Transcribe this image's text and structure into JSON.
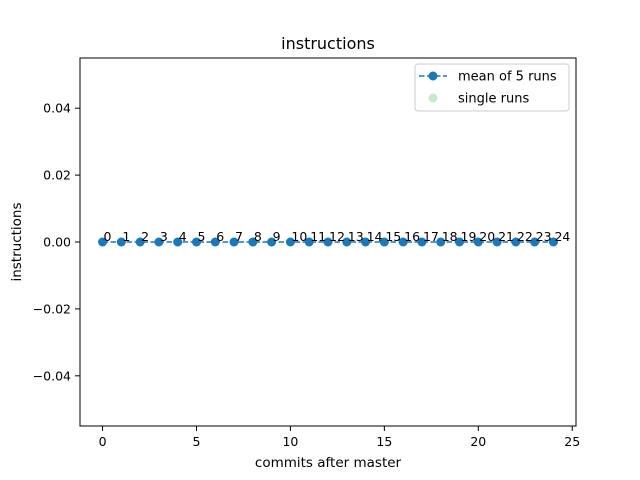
{
  "chart_data": {
    "type": "line",
    "title": "instructions",
    "xlabel": "commits after master",
    "ylabel": "instructions",
    "xlim": [
      -1.2,
      25.2
    ],
    "ylim": [
      -0.055,
      0.055
    ],
    "xticks": [
      0,
      5,
      10,
      15,
      20,
      25
    ],
    "yticks": [
      -0.04,
      -0.02,
      0.0,
      0.02,
      0.04
    ],
    "xtick_labels": [
      "0",
      "5",
      "10",
      "15",
      "20",
      "25"
    ],
    "ytick_labels": [
      "−0.04",
      "−0.02",
      "0.00",
      "0.02",
      "0.04"
    ],
    "grid": false,
    "legend_position": "top-right",
    "series": [
      {
        "name": "mean of 5 runs",
        "style": "dashed-line-with-circle-markers",
        "color": "#1f77b4",
        "x": [
          0,
          1,
          2,
          3,
          4,
          5,
          6,
          7,
          8,
          9,
          10,
          11,
          12,
          13,
          14,
          15,
          16,
          17,
          18,
          19,
          20,
          21,
          22,
          23,
          24
        ],
        "y": [
          0,
          0,
          0,
          0,
          0,
          0,
          0,
          0,
          0,
          0,
          0,
          0,
          0,
          0,
          0,
          0,
          0,
          0,
          0,
          0,
          0,
          0,
          0,
          0,
          0
        ]
      },
      {
        "name": "single runs",
        "style": "scatter",
        "color": "#2ca02c",
        "x": [
          0,
          1,
          2,
          3,
          4,
          5,
          6,
          7,
          8,
          9,
          10,
          11,
          12,
          13,
          14,
          15,
          16,
          17,
          18,
          19,
          20,
          21,
          22,
          23,
          24
        ],
        "y": [
          0,
          0,
          0,
          0,
          0,
          0,
          0,
          0,
          0,
          0,
          0,
          0,
          0,
          0,
          0,
          0,
          0,
          0,
          0,
          0,
          0,
          0,
          0,
          0,
          0
        ]
      }
    ],
    "point_labels": [
      "0",
      "1",
      "2",
      "3",
      "4",
      "5",
      "6",
      "7",
      "8",
      "9",
      "10",
      "11",
      "12",
      "13",
      "14",
      "15",
      "16",
      "17",
      "18",
      "19",
      "20",
      "21",
      "22",
      "23",
      "24"
    ]
  }
}
